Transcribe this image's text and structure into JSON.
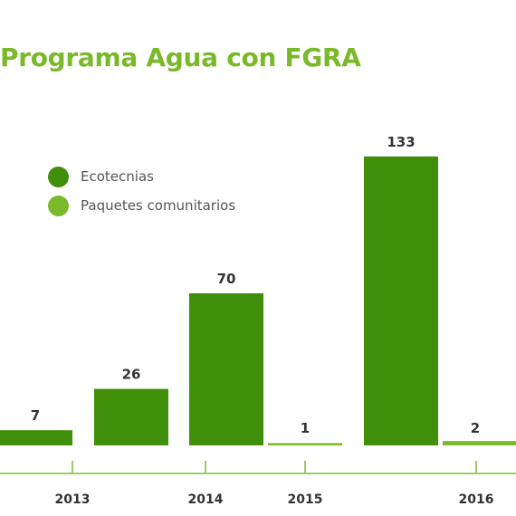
{
  "chart_data": {
    "type": "bar",
    "title": "Programa Agua con FGRA",
    "categories": [
      "2013",
      "2014",
      "2015",
      "2016"
    ],
    "series": [
      {
        "name": "Ecotecnias",
        "values": [
          7,
          26,
          70,
          133
        ],
        "color": "#3f8f0a"
      },
      {
        "name": "Paquetes comunitarios",
        "values": [
          null,
          null,
          1,
          2
        ],
        "color": "#7ab929"
      }
    ],
    "legend_position": "top-left",
    "axis_color": "#9ccb6b",
    "xlabel": "",
    "ylabel": "",
    "grid": false
  }
}
